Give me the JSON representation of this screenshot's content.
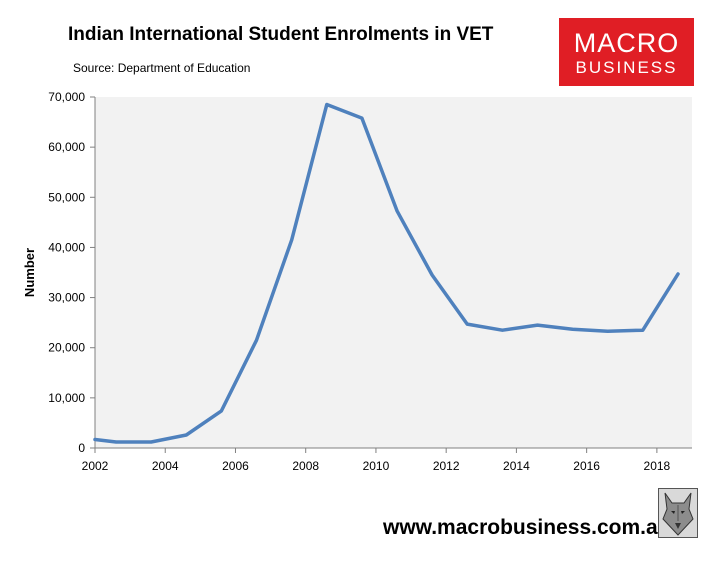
{
  "header": {
    "title": "Indian International Student Enrolments in VET",
    "source": "Source: Department of Education"
  },
  "logo": {
    "line1": "MACRO",
    "line2": "BUSINESS",
    "color": "#e01e25"
  },
  "footer": {
    "url": "www.macrobusiness.com.au",
    "icon": "wolf-icon"
  },
  "chart_data": {
    "type": "line",
    "ylabel": "Number",
    "xlabel": "",
    "xlim": [
      2002,
      2019
    ],
    "ylim": [
      0,
      70000
    ],
    "grid": false,
    "x_ticks": [
      2002,
      2004,
      2006,
      2008,
      2010,
      2012,
      2014,
      2016,
      2018
    ],
    "x_tick_labels": [
      "2002",
      "2004",
      "2006",
      "2008",
      "2010",
      "2012",
      "2014",
      "2016",
      "2018"
    ],
    "y_ticks": [
      0,
      10000,
      20000,
      30000,
      40000,
      50000,
      60000,
      70000
    ],
    "y_tick_labels": [
      "0",
      "10,000",
      "20,000",
      "30,000",
      "40,000",
      "50,000",
      "60,000",
      "70,000"
    ],
    "plot_background": "#f2f2f2",
    "series": [
      {
        "color": "#4f81bd",
        "x": [
          2002,
          2002.6,
          2003.6,
          2004.6,
          2005.6,
          2006.6,
          2007.6,
          2008.6,
          2009.6,
          2010.6,
          2011.6,
          2012.6,
          2013.6,
          2014.6,
          2015.6,
          2016.6,
          2017.6,
          2018.6
        ],
        "values": [
          1700,
          1200,
          1200,
          2600,
          7400,
          21500,
          41500,
          68500,
          65800,
          47300,
          34500,
          24700,
          23500,
          24500,
          23700,
          23300,
          23500,
          34700
        ]
      }
    ]
  }
}
